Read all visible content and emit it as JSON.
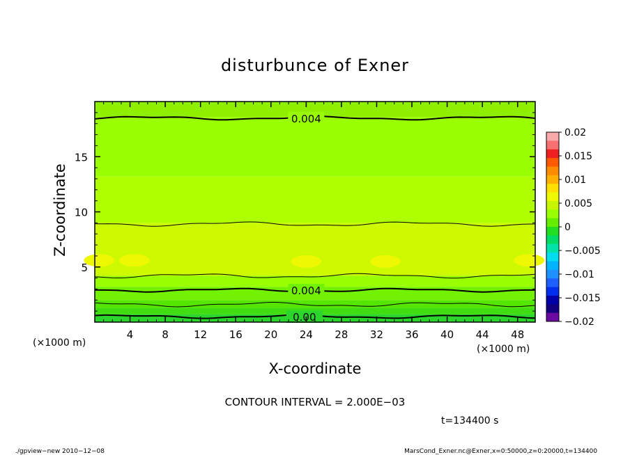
{
  "chart_data": {
    "type": "heatmap",
    "title": "disturbunce of Exner",
    "xlabel": "X-coordinate",
    "ylabel": "Z-coordinate",
    "x_unit": "(×1000 m)",
    "y_unit": "(×1000 m)",
    "xlim": [
      0,
      50
    ],
    "ylim": [
      0,
      20
    ],
    "x_ticks": [
      4,
      8,
      12,
      16,
      20,
      24,
      28,
      32,
      36,
      40,
      44,
      48
    ],
    "y_ticks": [
      5,
      10,
      15
    ],
    "colorbar": {
      "ticks": [
        "0.02",
        "0.015",
        "0.01",
        "0.005",
        "0",
        "−0.005",
        "−0.01",
        "−0.015",
        "−0.02"
      ],
      "range": [
        -0.02,
        0.02
      ],
      "colors": [
        "#f8aaaa",
        "#f87070",
        "#ee2020",
        "#ff5a00",
        "#ff8c00",
        "#ffb000",
        "#ffe000",
        "#eef800",
        "#c8f500",
        "#9aff00",
        "#66ee00",
        "#22dd22",
        "#00dd66",
        "#00e4aa",
        "#00ddee",
        "#00b4ff",
        "#1e90ff",
        "#1e60ff",
        "#0030ee",
        "#0000aa",
        "#100080",
        "#6a0aa0"
      ]
    },
    "field_bands": [
      {
        "z_from": 18.6,
        "z_to": 20.0,
        "color": "#8fef00"
      },
      {
        "z_from": 13.2,
        "z_to": 18.6,
        "color": "#9aff00"
      },
      {
        "z_from": 9.0,
        "z_to": 13.2,
        "color": "#aeff00"
      },
      {
        "z_from": 4.2,
        "z_to": 9.0,
        "color": "#cdfa00"
      },
      {
        "z_from": 3.2,
        "z_to": 4.2,
        "color": "#9aff00"
      },
      {
        "z_from": 2.0,
        "z_to": 3.2,
        "color": "#72f200"
      },
      {
        "z_from": 1.3,
        "z_to": 2.0,
        "color": "#55e600"
      },
      {
        "z_from": 0.7,
        "z_to": 1.3,
        "color": "#3fdd11"
      },
      {
        "z_from": 0.0,
        "z_to": 0.7,
        "color": "#2bd52b"
      }
    ],
    "maxima_regions": [
      {
        "x": 0.5,
        "z": 5.6
      },
      {
        "x": 4.5,
        "z": 5.6
      },
      {
        "x": 24.0,
        "z": 5.5
      },
      {
        "x": 33.0,
        "z": 5.5
      },
      {
        "x": 49.3,
        "z": 5.6
      }
    ],
    "contours": [
      {
        "z": 18.5,
        "major": true,
        "label": "0.004",
        "label_x": 24.0
      },
      {
        "z": 8.9,
        "major": false,
        "label": "",
        "label_x": null
      },
      {
        "z": 4.2,
        "major": false,
        "label": "",
        "label_x": null
      },
      {
        "z": 2.9,
        "major": true,
        "label": "0.004",
        "label_x": 24.0
      },
      {
        "z": 1.6,
        "major": false,
        "label": "",
        "label_x": null
      },
      {
        "z": 0.5,
        "major": true,
        "label": "0.00",
        "label_x": 23.8
      }
    ],
    "annotations": {
      "contour_interval": "CONTOUR INTERVAL = 2.000E−03",
      "time": "t=134400  s"
    }
  },
  "footer": {
    "left": "./gpview−new   2010−12−08",
    "right": "MarsCond_Exner.nc@Exner,x=0:50000,z=0:20000,t=134400"
  }
}
